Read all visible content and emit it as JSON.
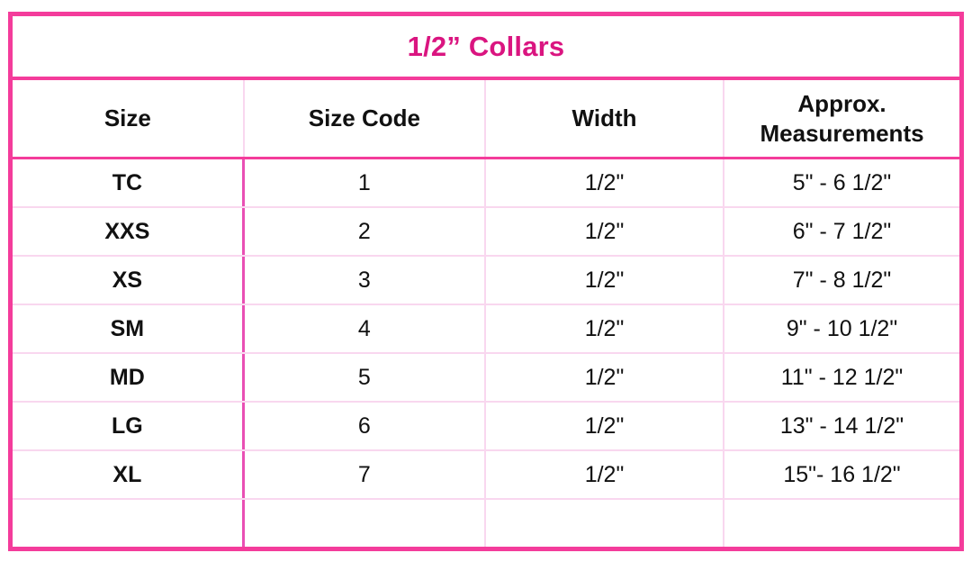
{
  "chart_data": {
    "type": "table",
    "title": "1/2” Collars",
    "columns": [
      "Size",
      "Size Code",
      "Width",
      "Approx. Measurements"
    ],
    "rows": [
      {
        "size": "TC",
        "size_code": "1",
        "width": "1/2\"",
        "measurements": "5\" - 6 1/2\""
      },
      {
        "size": "XXS",
        "size_code": "2",
        "width": "1/2\"",
        "measurements": "6\" - 7 1/2\""
      },
      {
        "size": "XS",
        "size_code": "3",
        "width": "1/2\"",
        "measurements": "7\" - 8 1/2\""
      },
      {
        "size": "SM",
        "size_code": "4",
        "width": "1/2\"",
        "measurements": "9\" - 10 1/2\""
      },
      {
        "size": "MD",
        "size_code": "5",
        "width": "1/2\"",
        "measurements": "11\" - 12 1/2\""
      },
      {
        "size": "LG",
        "size_code": "6",
        "width": "1/2\"",
        "measurements": "13\" - 14 1/2\""
      },
      {
        "size": "XL",
        "size_code": "7",
        "width": "1/2\"",
        "measurements": "15\"- 16 1/2\""
      },
      {
        "size": "",
        "size_code": "",
        "width": "",
        "measurements": ""
      }
    ],
    "layout_hints": {
      "grid": "on",
      "header_bold": true,
      "first_column_bold": true
    }
  },
  "colors": {
    "frame": "#F43C9B",
    "title_text": "#DA1580",
    "grid_light": "#F9D7EF",
    "divider_medium": "#E94FB4"
  }
}
